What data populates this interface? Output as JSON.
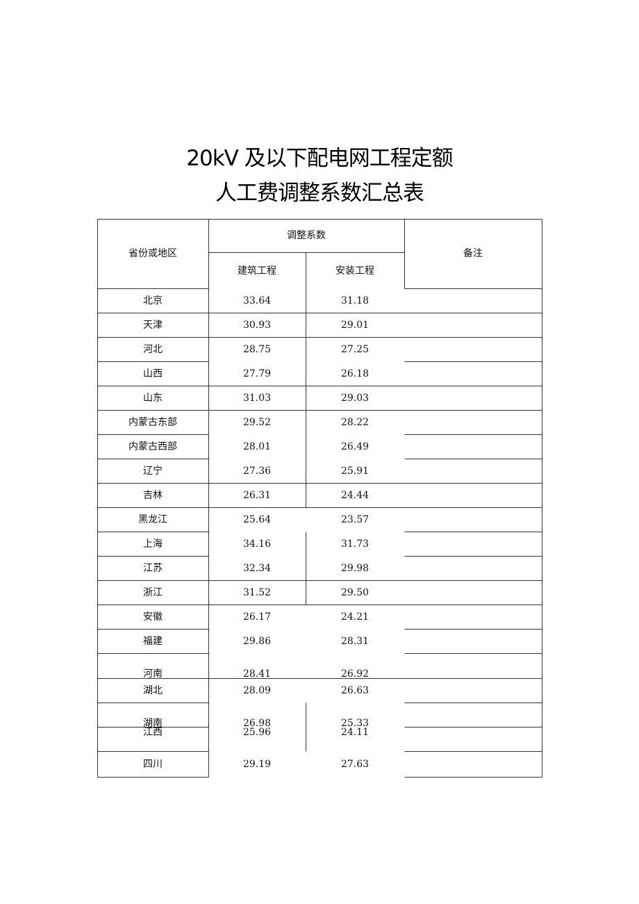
{
  "title_line1": "20kV 及以下配电网工程定额",
  "title_line2": "人工费调整系数汇总表",
  "header": {
    "region": "省份或地区",
    "coefficient": "调整系数",
    "construction": "建筑工程",
    "installation": "安装工程",
    "remarks": "备注"
  },
  "rows": [
    {
      "region": "北京",
      "construction": "33.64",
      "installation": "31.18"
    },
    {
      "region": "天津",
      "construction": "30.93",
      "installation": "29.01"
    },
    {
      "region": "河北",
      "construction": "28.75",
      "installation": "27.25"
    },
    {
      "region": "山西",
      "construction": "27.79",
      "installation": "26.18"
    },
    {
      "region": "山东",
      "construction": "31.03",
      "installation": "29.03"
    },
    {
      "region": "内蒙古东部",
      "construction": "29.52",
      "installation": "28.22"
    },
    {
      "region": "内蒙古西部",
      "construction": "28.01",
      "installation": "26.49"
    },
    {
      "region": "辽宁",
      "construction": "27.36",
      "installation": "25.91"
    },
    {
      "region": "吉林",
      "construction": "26.31",
      "installation": "24.44"
    },
    {
      "region": "黑龙江",
      "construction": "25.64",
      "installation": "23.57"
    },
    {
      "region": "上海",
      "construction": "34.16",
      "installation": "31.73"
    },
    {
      "region": "江苏",
      "construction": "32.34",
      "installation": "29.98"
    },
    {
      "region": "浙江",
      "construction": "31.52",
      "installation": "29.50"
    },
    {
      "region": "安徽",
      "construction": "26.17",
      "installation": "24.21"
    },
    {
      "region": "福建",
      "construction": "29.86",
      "installation": "28.31"
    },
    {
      "region": "河南",
      "construction": "28.41",
      "installation": "26.92"
    },
    {
      "region": "湖北",
      "construction": "28.09",
      "installation": "26.63"
    },
    {
      "region": "湖南",
      "construction": "26.98",
      "installation": "25.33"
    },
    {
      "region": "江西",
      "construction": "25.96",
      "installation": "24.11"
    },
    {
      "region": "四川",
      "construction": "29.19",
      "installation": "27.63"
    }
  ]
}
